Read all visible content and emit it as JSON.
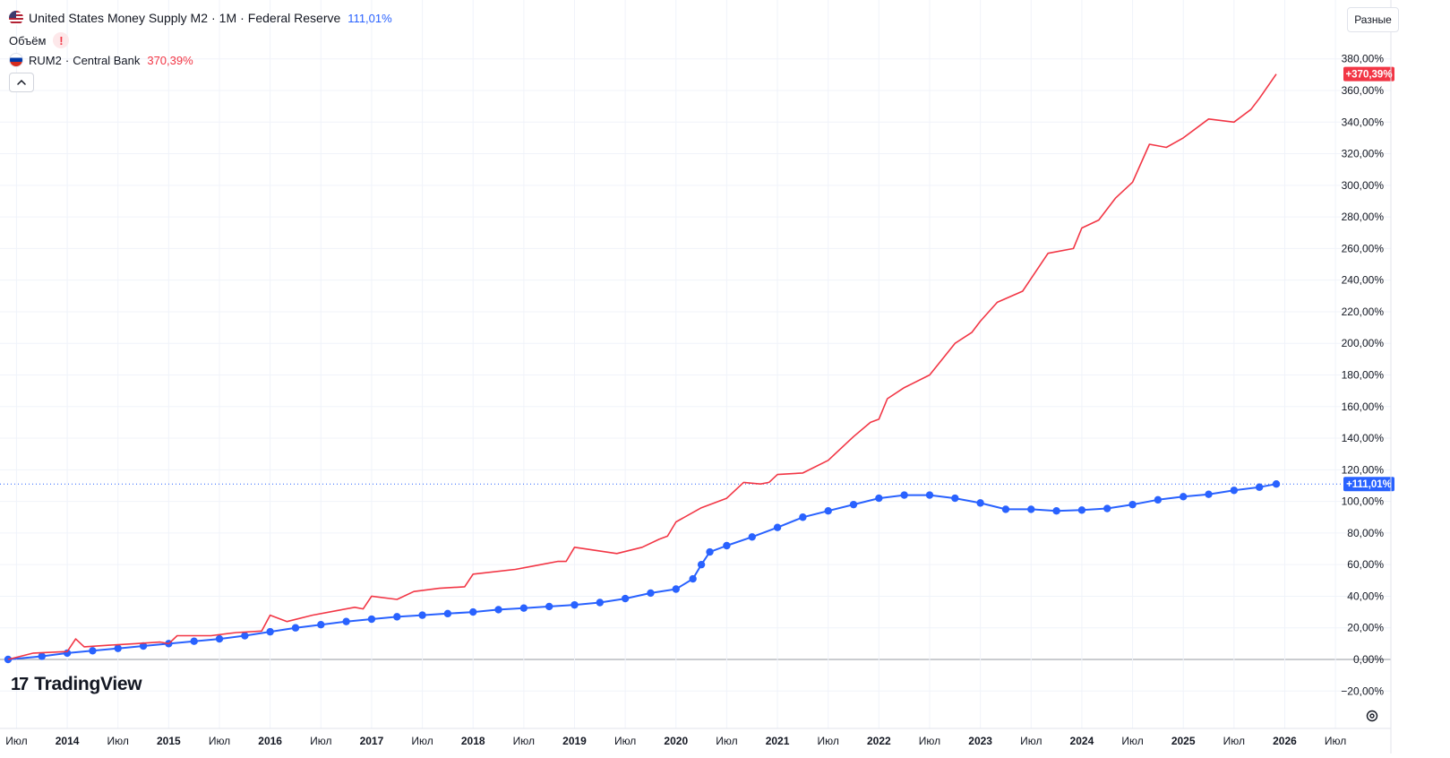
{
  "legend": {
    "main_symbol": "United States Money Supply M2",
    "main_interval": "1M",
    "main_source": "Federal Reserve",
    "main_value": "111,01%",
    "volume_label": "Объём",
    "volume_warning": "!",
    "compare_symbol": "RUM2",
    "compare_source": "Central Bank",
    "compare_value": "370,39%",
    "collapse_icon": "chevron-up-icon"
  },
  "toolbar": {
    "scale_mode_label": "Разные",
    "settings_icon": "gear-icon"
  },
  "branding": {
    "logo_mark": "17",
    "logo_text": "TradingView"
  },
  "colors": {
    "us_series": "#2962ff",
    "ru_series": "#f23645",
    "grid": "#f0f3fa",
    "zero_line": "#9598a1",
    "text": "#131722"
  },
  "chart_data": {
    "type": "line",
    "title": "",
    "ylabel": "",
    "y_unit": "%",
    "ylim": [
      -28,
      392
    ],
    "y_ticks": [
      -20,
      0,
      20,
      40,
      60,
      80,
      100,
      120,
      140,
      160,
      180,
      200,
      220,
      240,
      260,
      280,
      300,
      320,
      340,
      360,
      380
    ],
    "y_tick_labels": [
      "−20,00%",
      "0,00%",
      "20,00%",
      "40,00%",
      "60,00%",
      "80,00%",
      "100,00%",
      "120,00%",
      "140,00%",
      "160,00%",
      "180,00%",
      "200,00%",
      "220,00%",
      "240,00%",
      "260,00%",
      "280,00%",
      "300,00%",
      "320,00%",
      "340,00%",
      "360,00%",
      "380,00%"
    ],
    "x_axis_labels": [
      {
        "label": "Июл",
        "date": "2013-07"
      },
      {
        "label": "2014",
        "date": "2014-01"
      },
      {
        "label": "Июл",
        "date": "2014-07"
      },
      {
        "label": "2015",
        "date": "2015-01"
      },
      {
        "label": "Июл",
        "date": "2015-07"
      },
      {
        "label": "2016",
        "date": "2016-01"
      },
      {
        "label": "Июл",
        "date": "2016-07"
      },
      {
        "label": "2017",
        "date": "2017-01"
      },
      {
        "label": "Июл",
        "date": "2017-07"
      },
      {
        "label": "2018",
        "date": "2018-01"
      },
      {
        "label": "Июл",
        "date": "2018-07"
      },
      {
        "label": "2019",
        "date": "2019-01"
      },
      {
        "label": "Июл",
        "date": "2019-07"
      },
      {
        "label": "2020",
        "date": "2020-01"
      },
      {
        "label": "Июл",
        "date": "2020-07"
      },
      {
        "label": "2021",
        "date": "2021-01"
      },
      {
        "label": "Июл",
        "date": "2021-07"
      },
      {
        "label": "2022",
        "date": "2022-01"
      },
      {
        "label": "Июл",
        "date": "2022-07"
      },
      {
        "label": "2023",
        "date": "2023-01"
      },
      {
        "label": "Июл",
        "date": "2023-07"
      },
      {
        "label": "2024",
        "date": "2024-01"
      },
      {
        "label": "Июл",
        "date": "2024-07"
      },
      {
        "label": "2025",
        "date": "2025-01"
      },
      {
        "label": "Июл",
        "date": "2025-07"
      },
      {
        "label": "2026",
        "date": "2026-01"
      },
      {
        "label": "Июл",
        "date": "2026-07"
      }
    ],
    "xlim": [
      "2013-06",
      "2026-09"
    ],
    "grid": true,
    "series": [
      {
        "name": "United States Money Supply M2",
        "line_style": "dots",
        "last_value_label": "+111,01%",
        "x": [
          "2013-06",
          "2013-10",
          "2014-01",
          "2014-04",
          "2014-07",
          "2014-10",
          "2015-01",
          "2015-04",
          "2015-07",
          "2015-10",
          "2016-01",
          "2016-04",
          "2016-07",
          "2016-10",
          "2017-01",
          "2017-04",
          "2017-07",
          "2017-10",
          "2018-01",
          "2018-04",
          "2018-07",
          "2018-10",
          "2019-01",
          "2019-04",
          "2019-07",
          "2019-10",
          "2020-01",
          "2020-03",
          "2020-04",
          "2020-05",
          "2020-07",
          "2020-10",
          "2021-01",
          "2021-04",
          "2021-07",
          "2021-10",
          "2022-01",
          "2022-04",
          "2022-07",
          "2022-10",
          "2023-01",
          "2023-04",
          "2023-07",
          "2023-10",
          "2024-01",
          "2024-04",
          "2024-07",
          "2024-10",
          "2025-01",
          "2025-04",
          "2025-07",
          "2025-10",
          "2025-12"
        ],
        "values": [
          0,
          2,
          4,
          5.5,
          7,
          8.5,
          10,
          11.5,
          13,
          15,
          17.5,
          20,
          22,
          24,
          25.5,
          27,
          28,
          29,
          30,
          31.5,
          32.5,
          33.5,
          34.5,
          36,
          38.5,
          42,
          44.5,
          51,
          60,
          68,
          72,
          77.5,
          83.5,
          90,
          94,
          98,
          102,
          104,
          104,
          102,
          99,
          95,
          95,
          94,
          94.5,
          95.5,
          98,
          101,
          103,
          104.5,
          107,
          109,
          111.01
        ]
      },
      {
        "name": "RUM2 · Central Bank",
        "line_style": "line",
        "last_value_label": "+370,39%",
        "x": [
          "2013-06",
          "2013-09",
          "2014-01",
          "2014-02",
          "2014-03",
          "2014-06",
          "2014-09",
          "2014-12",
          "2015-01",
          "2015-02",
          "2015-06",
          "2015-09",
          "2015-12",
          "2016-01",
          "2016-03",
          "2016-06",
          "2016-09",
          "2016-11",
          "2016-12",
          "2017-01",
          "2017-04",
          "2017-06",
          "2017-09",
          "2017-12",
          "2018-01",
          "2018-06",
          "2018-09",
          "2018-11",
          "2018-12",
          "2019-01",
          "2019-06",
          "2019-09",
          "2019-11",
          "2019-12",
          "2020-01",
          "2020-04",
          "2020-07",
          "2020-09",
          "2020-11",
          "2020-12",
          "2021-01",
          "2021-04",
          "2021-07",
          "2021-10",
          "2021-12",
          "2022-01",
          "2022-02",
          "2022-04",
          "2022-07",
          "2022-10",
          "2022-12",
          "2023-01",
          "2023-03",
          "2023-06",
          "2023-09",
          "2023-12",
          "2024-01",
          "2024-03",
          "2024-05",
          "2024-07",
          "2024-09",
          "2024-11",
          "2024-12",
          "2025-01",
          "2025-04",
          "2025-07",
          "2025-09",
          "2025-10",
          "2025-12"
        ],
        "values": [
          0,
          4,
          5,
          13,
          8,
          9,
          10,
          11,
          10,
          15,
          15,
          17,
          18,
          28,
          24,
          28,
          31,
          33,
          32,
          40,
          38,
          43,
          45,
          46,
          54,
          57,
          60,
          62,
          62,
          71,
          67,
          71,
          76,
          78,
          87,
          96,
          102,
          112,
          111,
          112,
          117,
          118,
          126,
          141,
          150,
          152,
          165,
          172,
          180,
          200,
          207,
          214,
          226,
          233,
          257,
          260,
          273,
          278,
          292,
          302,
          326,
          324,
          327,
          330,
          342,
          340,
          348,
          355,
          370.39
        ]
      }
    ]
  }
}
